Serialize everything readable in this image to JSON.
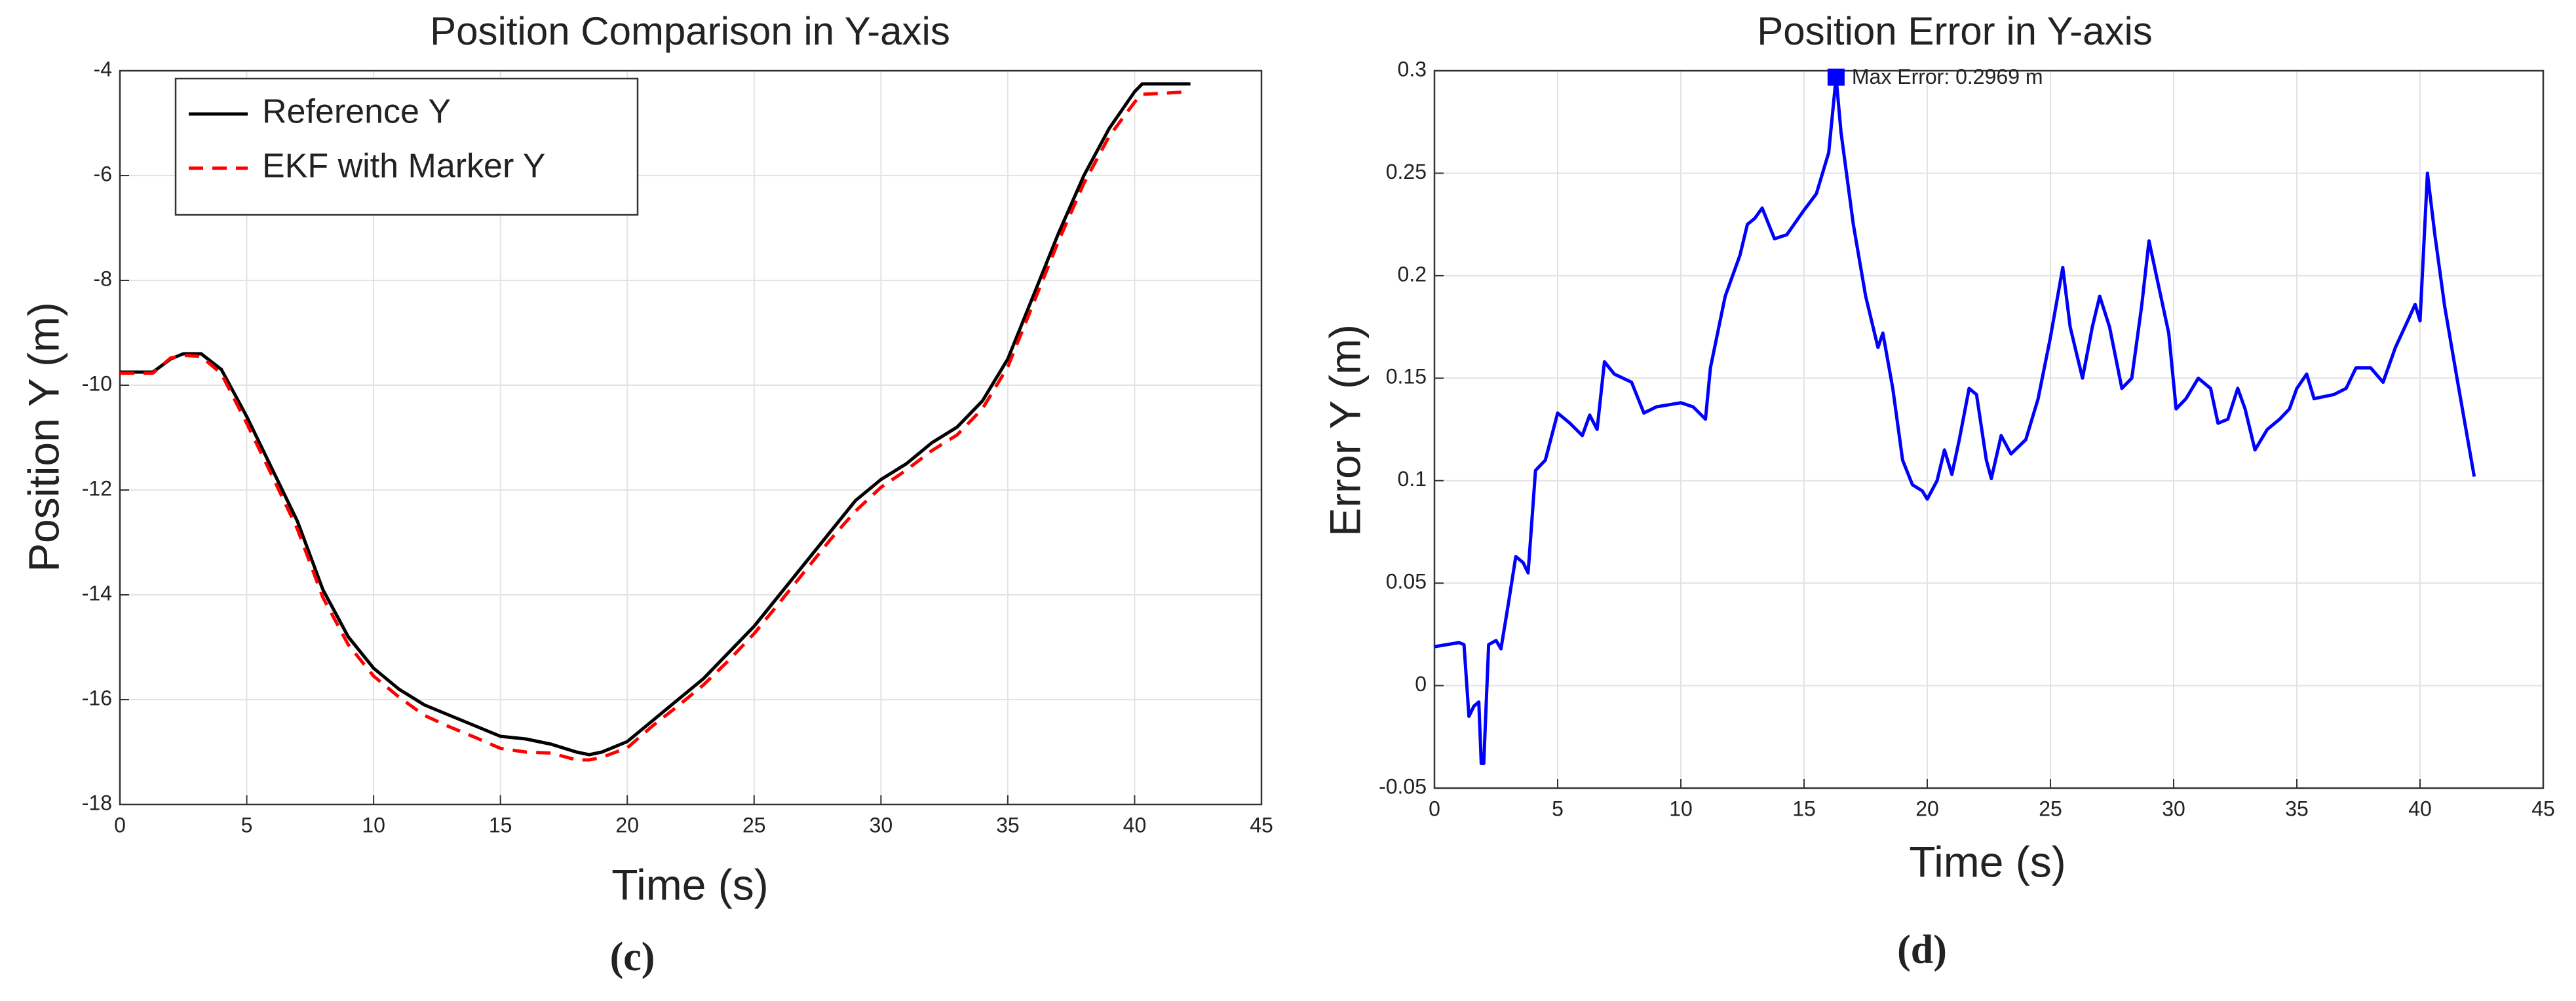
{
  "chart_data": [
    {
      "type": "line",
      "title": "Position Comparison in Y-axis",
      "x_label": "Time (s)",
      "y_label": "Position Y (m)",
      "caption": "(c)",
      "x": [
        0,
        1.3,
        2,
        2.5,
        3.2,
        4,
        5,
        6,
        7,
        8,
        9,
        10,
        11,
        12,
        13,
        14,
        15,
        16,
        17,
        18,
        18.5,
        19,
        20,
        21,
        22,
        23,
        24,
        25,
        26,
        27,
        28,
        29,
        30,
        31,
        32,
        33,
        34,
        35,
        36,
        37,
        38,
        39,
        40,
        40.3,
        42.2
      ],
      "series": [
        {
          "name": "Reference Y",
          "color": "#000000",
          "dashed": false,
          "values": [
            -9.75,
            -9.75,
            -9.5,
            -9.4,
            -9.4,
            -9.7,
            -10.6,
            -11.6,
            -12.6,
            -13.9,
            -14.8,
            -15.4,
            -15.8,
            -16.1,
            -16.3,
            -16.5,
            -16.7,
            -16.75,
            -16.85,
            -17.0,
            -17.05,
            -17.0,
            -16.8,
            -16.4,
            -16.0,
            -15.6,
            -15.1,
            -14.6,
            -14.0,
            -13.4,
            -12.8,
            -12.2,
            -11.8,
            -11.5,
            -11.1,
            -10.8,
            -10.3,
            -9.5,
            -8.3,
            -7.1,
            -6.0,
            -5.1,
            -4.4,
            -4.25,
            -4.25
          ]
        },
        {
          "name": "EKF with Marker Y",
          "color": "#ff0000",
          "dashed": true,
          "values": [
            -9.77,
            -9.77,
            -9.48,
            -9.43,
            -9.45,
            -9.78,
            -10.73,
            -11.73,
            -12.75,
            -14.05,
            -14.95,
            -15.55,
            -15.95,
            -16.3,
            -16.52,
            -16.72,
            -16.93,
            -17.0,
            -17.02,
            -17.15,
            -17.15,
            -17.1,
            -16.92,
            -16.5,
            -16.12,
            -15.72,
            -15.25,
            -14.74,
            -14.15,
            -13.55,
            -12.95,
            -12.4,
            -11.95,
            -11.62,
            -11.25,
            -10.95,
            -10.45,
            -9.65,
            -8.45,
            -7.25,
            -6.15,
            -5.25,
            -4.6,
            -4.45,
            -4.4
          ]
        }
      ],
      "xlim": [
        0,
        45
      ],
      "xticks": [
        0,
        5,
        10,
        15,
        20,
        25,
        30,
        35,
        40,
        45
      ],
      "ylim": [
        -18,
        -4
      ],
      "yticks": [
        -18,
        -16,
        -14,
        -12,
        -10,
        -8,
        -6,
        -4
      ],
      "grid": true,
      "legend": "upper left"
    },
    {
      "type": "line",
      "title": "Position Error in Y-axis",
      "x_label": "Time (s)",
      "y_label": "Error Y (m)",
      "caption": "(d)",
      "x": [
        0,
        1,
        1.2,
        1.4,
        1.6,
        1.8,
        1.9,
        2.0,
        2.2,
        2.5,
        2.7,
        3,
        3.3,
        3.6,
        3.8,
        4.1,
        4.5,
        5,
        5.5,
        6,
        6.3,
        6.6,
        6.9,
        7.3,
        8,
        8.5,
        9,
        10,
        10.5,
        11,
        11.2,
        11.8,
        12.4,
        12.7,
        13,
        13.3,
        13.8,
        14.3,
        15,
        15.5,
        16,
        16.3,
        16.5,
        17,
        17.5,
        18,
        18.2,
        18.6,
        19,
        19.4,
        19.8,
        20,
        20.4,
        20.7,
        21,
        21.3,
        21.7,
        22,
        22.4,
        22.6,
        23,
        23.4,
        24,
        24.5,
        25,
        25.5,
        25.8,
        26.3,
        26.7,
        27,
        27.4,
        27.9,
        28.3,
        28.7,
        29,
        29.3,
        29.8,
        30.1,
        30.5,
        31,
        31.5,
        31.8,
        32.2,
        32.6,
        32.9,
        33.3,
        33.8,
        34.3,
        34.7,
        35,
        35.4,
        35.7,
        36.5,
        37,
        37.4,
        38,
        38.5,
        39,
        39.5,
        39.8,
        40,
        40.3,
        40.6,
        41,
        41.5,
        42.2
      ],
      "series": [
        {
          "color": "#0000ff",
          "dashed": false,
          "values": [
            0.019,
            0.021,
            0.02,
            -0.015,
            -0.01,
            -0.008,
            -0.038,
            -0.038,
            0.02,
            0.022,
            0.018,
            0.04,
            0.063,
            0.06,
            0.055,
            0.105,
            0.11,
            0.133,
            0.128,
            0.122,
            0.132,
            0.125,
            0.158,
            0.152,
            0.148,
            0.133,
            0.136,
            0.138,
            0.136,
            0.13,
            0.155,
            0.19,
            0.21,
            0.225,
            0.228,
            0.233,
            0.218,
            0.22,
            0.232,
            0.24,
            0.26,
            0.2969,
            0.27,
            0.225,
            0.19,
            0.165,
            0.172,
            0.145,
            0.11,
            0.098,
            0.095,
            0.091,
            0.1,
            0.115,
            0.103,
            0.12,
            0.145,
            0.142,
            0.11,
            0.101,
            0.122,
            0.113,
            0.12,
            0.14,
            0.17,
            0.204,
            0.175,
            0.15,
            0.175,
            0.19,
            0.175,
            0.145,
            0.15,
            0.185,
            0.217,
            0.2,
            0.172,
            0.135,
            0.14,
            0.15,
            0.145,
            0.128,
            0.13,
            0.145,
            0.135,
            0.115,
            0.125,
            0.13,
            0.135,
            0.145,
            0.152,
            0.14,
            0.142,
            0.145,
            0.155,
            0.155,
            0.148,
            0.165,
            0.178,
            0.186,
            0.178,
            0.25,
            0.22,
            0.185,
            0.15,
            0.102
          ]
        }
      ],
      "annotation": {
        "text": "Max Error: 0.2969 m",
        "x": 16.3,
        "y": 0.2969,
        "color": "#0000ff"
      },
      "xlim": [
        0,
        45
      ],
      "xticks": [
        0,
        5,
        10,
        15,
        20,
        25,
        30,
        35,
        40,
        45
      ],
      "ylim": [
        -0.05,
        0.3
      ],
      "yticks": [
        -0.05,
        0,
        0.05,
        0.1,
        0.15,
        0.2,
        0.25,
        0.3
      ],
      "grid": true
    }
  ]
}
